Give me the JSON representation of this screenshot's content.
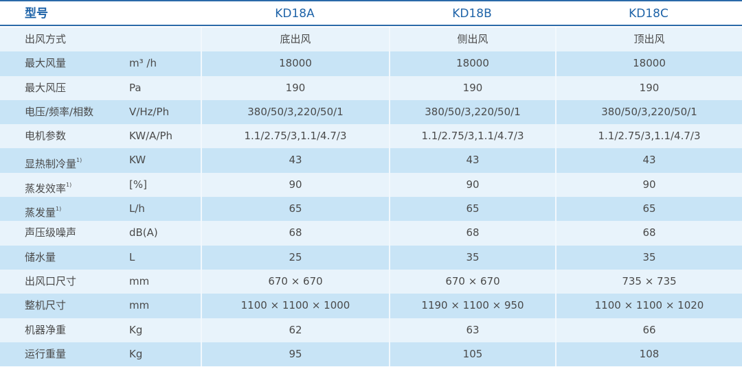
{
  "header": {
    "label": "型号",
    "models": [
      "KD18A",
      "KD18B",
      "KD18C"
    ]
  },
  "rows": [
    {
      "name": "出风方式",
      "note": "",
      "unit": "",
      "values": [
        "底出风",
        "侧出风",
        "顶出风"
      ]
    },
    {
      "name": "最大风量",
      "note": "",
      "unit": "m³ /h",
      "values": [
        "18000",
        "18000",
        "18000"
      ]
    },
    {
      "name": "最大风压",
      "note": "",
      "unit": "Pa",
      "values": [
        "190",
        "190",
        "190"
      ]
    },
    {
      "name": "电压/频率/相数",
      "note": "",
      "unit": "V/Hz/Ph",
      "values": [
        "380/50/3,220/50/1",
        "380/50/3,220/50/1",
        "380/50/3,220/50/1"
      ]
    },
    {
      "name": "电机参数",
      "note": "",
      "unit": "KW/A/Ph",
      "values": [
        "1.1/2.75/3,1.1/4.7/3",
        "1.1/2.75/3,1.1/4.7/3",
        "1.1/2.75/3,1.1/4.7/3"
      ]
    },
    {
      "name": "显热制冷量",
      "note": "1)",
      "unit": "KW",
      "values": [
        "43",
        "43",
        "43"
      ]
    },
    {
      "name": "蒸发效率",
      "note": "1)",
      "unit": "[%]",
      "values": [
        "90",
        "90",
        "90"
      ]
    },
    {
      "name": "蒸发量",
      "note": "1)",
      "unit": "L/h",
      "values": [
        "65",
        "65",
        "65"
      ]
    },
    {
      "name": "声压级噪声",
      "note": "",
      "unit": "dB(A)",
      "values": [
        "68",
        "68",
        "68"
      ]
    },
    {
      "name": "储水量",
      "note": "",
      "unit": "L",
      "values": [
        "25",
        "35",
        "35"
      ]
    },
    {
      "name": "出风口尺寸",
      "note": "",
      "unit": "mm",
      "values": [
        "670 × 670",
        "670 × 670",
        "735 × 735"
      ]
    },
    {
      "name": "整机尺寸",
      "note": "",
      "unit": "mm",
      "values": [
        "1100 × 1100 × 1000",
        "1190 × 1100 × 950",
        "1100 × 1100 × 1020"
      ]
    },
    {
      "name": "机器净重",
      "note": "",
      "unit": "Kg",
      "values": [
        "62",
        "63",
        "66"
      ]
    },
    {
      "name": "运行重量",
      "note": "",
      "unit": "Kg",
      "values": [
        "95",
        "105",
        "108"
      ]
    }
  ]
}
